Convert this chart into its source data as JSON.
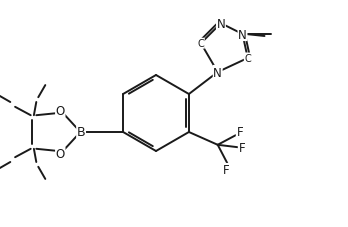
{
  "background_color": "#ffffff",
  "line_color": "#1a1a1a",
  "line_width": 1.4,
  "font_size_atom": 8.5,
  "font_size_methyl": 7.5,
  "figsize": [
    3.48,
    2.28
  ],
  "dpi": 100,
  "xlim": [
    0,
    8.7
  ],
  "ylim": [
    0,
    5.7
  ]
}
